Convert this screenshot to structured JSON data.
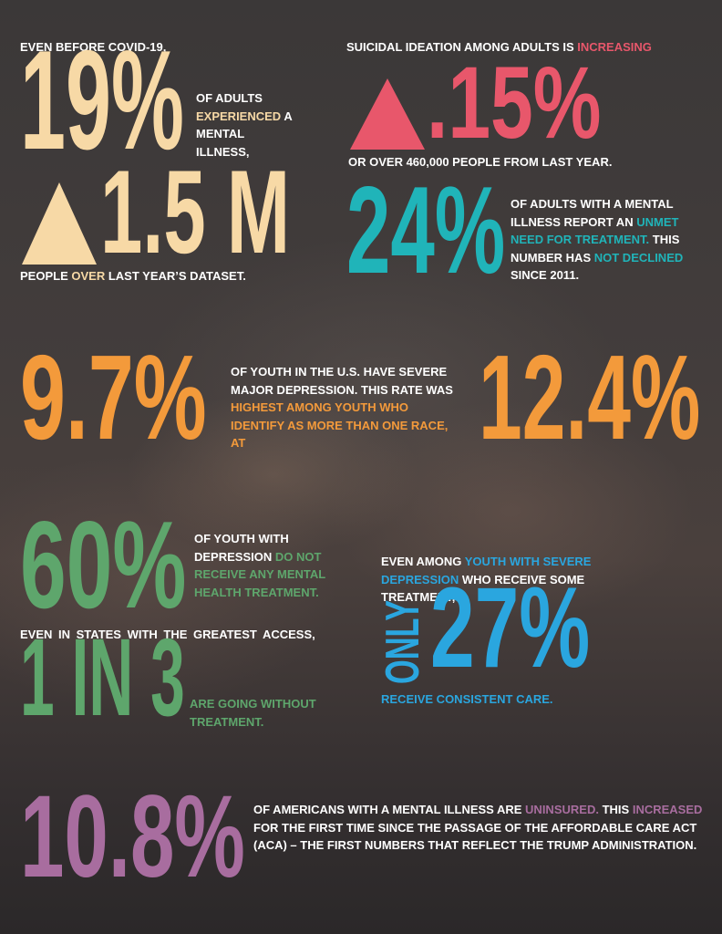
{
  "adult_illness": {
    "intro": "EVEN BEFORE COVID-19,",
    "stat": "19%",
    "text": [
      "OF ADULTS",
      "EXPERIENCED",
      "A MENTAL ILLNESS,"
    ]
  },
  "adult_increase": {
    "stat": "1.5 M",
    "text": [
      "PEOPLE",
      "OVER",
      "LAST YEAR’S DATASET."
    ]
  },
  "suicidal_ideation": {
    "heading": [
      "SUICIDAL IDEATION AMONG ADULTS IS",
      "INCREASING"
    ],
    "stat": ".15%",
    "text": "OR OVER 460,000 PEOPLE FROM LAST YEAR."
  },
  "unmet_need": {
    "stat": "24%",
    "text": [
      "OF ADULTS WITH A MENTAL ILLNESS REPORT AN",
      "UNMET NEED FOR TREATMENT.",
      "THIS NUMBER HAS",
      "NOT DECLINED",
      "SINCE 2011."
    ]
  },
  "youth_depression": {
    "stat": "9.7%",
    "text": [
      "OF YOUTH IN THE U.S. HAVE SEVERE MAJOR DEPRESSION. THIS RATE WAS",
      "HIGHEST AMONG YOUTH WHO IDENTIFY AS MORE THAN ONE RACE, AT"
    ],
    "stat_multiracial": "12.4%"
  },
  "youth_untreated": {
    "stat": "60%",
    "text": [
      "OF YOUTH WITH DEPRESSION",
      "DO NOT RECEIVE ANY MENTAL HEALTH TREATMENT."
    ]
  },
  "greatest_access": {
    "intro": "EVEN IN STATES WITH THE GREATEST ACCESS,",
    "stat": "1 IN 3",
    "text": "ARE GOING WITHOUT TREATMENT."
  },
  "consistent_care": {
    "intro": [
      "EVEN AMONG",
      "YOUTH WITH SEVERE DEPRESSION",
      "WHO RECEIVE SOME TREATMENT,"
    ],
    "qualifier": "ONLY",
    "stat": "27%",
    "text": "RECEIVE CONSISTENT CARE."
  },
  "uninsured": {
    "stat": "10.8%",
    "text": [
      "OF AMERICANS WITH A MENTAL ILLNESS ARE",
      "UNINSURED.",
      "THIS",
      "INCREASED",
      "FOR THE FIRST TIME SINCE THE PASSAGE OF THE AFFORDABLE CARE ACT (ACA) – THE FIRST NUMBERS THAT REFLECT THE TRUMP ADMINISTRATION."
    ]
  }
}
